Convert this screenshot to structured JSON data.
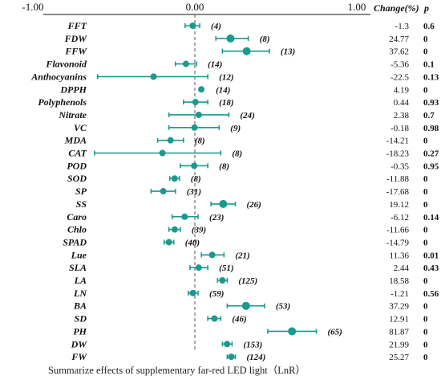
{
  "colors": {
    "marker": "#1a9a8e",
    "axis": "#111111",
    "zero_line": "#555555"
  },
  "chart_data": {
    "type": "forest",
    "title": "",
    "xlabel": "",
    "ylabel": "",
    "xlim": [
      -1.0,
      1.0
    ],
    "x_ticks": [
      {
        "value": -1.0,
        "label": "-1.00"
      },
      {
        "value": 0.0,
        "label": "0.00"
      },
      {
        "value": 1.0,
        "label": "1.00"
      }
    ],
    "reference_line": 0,
    "columns": {
      "change": "Change(%)",
      "p": "p"
    },
    "rows": [
      {
        "label": "FFT",
        "effect": -0.013,
        "ci_low": -0.06,
        "ci_high": 0.03,
        "n_label": "(4)",
        "change": "-1.3",
        "p": "0.6",
        "size": 4
      },
      {
        "label": "FDW",
        "effect": 0.22,
        "ci_low": 0.13,
        "ci_high": 0.33,
        "n_label": "(8)",
        "change": "24.77",
        "p": "0",
        "size": 5
      },
      {
        "label": "FFW",
        "effect": 0.32,
        "ci_low": 0.17,
        "ci_high": 0.46,
        "n_label": "(13)",
        "change": "37.62",
        "p": "0",
        "size": 5
      },
      {
        "label": "Flavonoid",
        "effect": -0.055,
        "ci_low": -0.12,
        "ci_high": 0.01,
        "n_label": "(14)",
        "change": "-5.36",
        "p": "0.1",
        "size": 4
      },
      {
        "label": "Anthocyanins",
        "effect": -0.255,
        "ci_low": -0.6,
        "ci_high": 0.08,
        "n_label": "(12)",
        "change": "-22.5",
        "p": "0.13",
        "size": 4
      },
      {
        "label": "DPPH",
        "effect": 0.04,
        "ci_low": 0.04,
        "ci_high": 0.04,
        "n_label": "(14)",
        "change": "4.19",
        "p": "0",
        "size": 4
      },
      {
        "label": "Polyphenols",
        "effect": 0.004,
        "ci_low": -0.07,
        "ci_high": 0.08,
        "n_label": "(18)",
        "change": "0.44",
        "p": "0.93",
        "size": 4
      },
      {
        "label": "Nitrate",
        "effect": 0.024,
        "ci_low": -0.16,
        "ci_high": 0.21,
        "n_label": "(24)",
        "change": "2.38",
        "p": "0.7",
        "size": 4
      },
      {
        "label": "VC",
        "effect": -0.002,
        "ci_low": -0.16,
        "ci_high": 0.15,
        "n_label": "(9)",
        "change": "-0.18",
        "p": "0.98",
        "size": 4
      },
      {
        "label": "MDA",
        "effect": -0.15,
        "ci_low": -0.23,
        "ci_high": -0.07,
        "n_label": "(8)",
        "change": "-14.21",
        "p": "0",
        "size": 4
      },
      {
        "label": "CAT",
        "effect": -0.2,
        "ci_low": -0.62,
        "ci_high": 0.16,
        "n_label": "(8)",
        "change": "-18.23",
        "p": "0.27",
        "size": 4
      },
      {
        "label": "POD",
        "effect": -0.004,
        "ci_low": -0.09,
        "ci_high": 0.08,
        "n_label": "(8)",
        "change": "-0.35",
        "p": "0.95",
        "size": 4
      },
      {
        "label": "SOD",
        "effect": -0.125,
        "ci_low": -0.155,
        "ci_high": -0.095,
        "n_label": "(8)",
        "change": "-11.88",
        "p": "0",
        "size": 4
      },
      {
        "label": "SP",
        "effect": -0.195,
        "ci_low": -0.27,
        "ci_high": -0.12,
        "n_label": "(31)",
        "change": "-17.68",
        "p": "0",
        "size": 4
      },
      {
        "label": "SS",
        "effect": 0.175,
        "ci_low": 0.1,
        "ci_high": 0.25,
        "n_label": "(26)",
        "change": "19.12",
        "p": "0",
        "size": 5
      },
      {
        "label": "Caro",
        "effect": -0.063,
        "ci_low": -0.14,
        "ci_high": 0.02,
        "n_label": "(23)",
        "change": "-6.12",
        "p": "0.14",
        "size": 4
      },
      {
        "label": "Chlo",
        "effect": -0.124,
        "ci_low": -0.16,
        "ci_high": -0.09,
        "n_label": "(39)",
        "change": "-11.66",
        "p": "0",
        "size": 4
      },
      {
        "label": "SPAD",
        "effect": -0.16,
        "ci_low": -0.19,
        "ci_high": -0.13,
        "n_label": "(40)",
        "change": "-14.79",
        "p": "0",
        "size": 4
      },
      {
        "label": "Lue",
        "effect": 0.107,
        "ci_low": 0.04,
        "ci_high": 0.18,
        "n_label": "(21)",
        "change": "11.36",
        "p": "0.01",
        "size": 4
      },
      {
        "label": "SLA",
        "effect": 0.024,
        "ci_low": -0.03,
        "ci_high": 0.08,
        "n_label": "(51)",
        "change": "2.44",
        "p": "0.43",
        "size": 4
      },
      {
        "label": "LA",
        "effect": 0.17,
        "ci_low": 0.14,
        "ci_high": 0.2,
        "n_label": "(125)",
        "change": "18.58",
        "p": "0",
        "size": 4
      },
      {
        "label": "LN",
        "effect": -0.012,
        "ci_low": -0.04,
        "ci_high": 0.02,
        "n_label": "(59)",
        "change": "-1.21",
        "p": "0.56",
        "size": 4
      },
      {
        "label": "BA",
        "effect": 0.316,
        "ci_low": 0.2,
        "ci_high": 0.43,
        "n_label": "(53)",
        "change": "37.29",
        "p": "0",
        "size": 5
      },
      {
        "label": "SD",
        "effect": 0.121,
        "ci_low": 0.08,
        "ci_high": 0.16,
        "n_label": "(46)",
        "change": "12.91",
        "p": "0",
        "size": 4
      },
      {
        "label": "PH",
        "effect": 0.6,
        "ci_low": 0.45,
        "ci_high": 0.75,
        "n_label": "(65)",
        "change": "81.87",
        "p": "0",
        "size": 5
      },
      {
        "label": "DW",
        "effect": 0.199,
        "ci_low": 0.17,
        "ci_high": 0.23,
        "n_label": "(153)",
        "change": "21.99",
        "p": "0",
        "size": 4
      },
      {
        "label": "FW",
        "effect": 0.225,
        "ci_low": 0.2,
        "ci_high": 0.25,
        "n_label": "(124)",
        "change": "25.27",
        "p": "0",
        "size": 4
      }
    ]
  },
  "caption": "Summarize effects of supplementary far-red LED light（LnR）"
}
